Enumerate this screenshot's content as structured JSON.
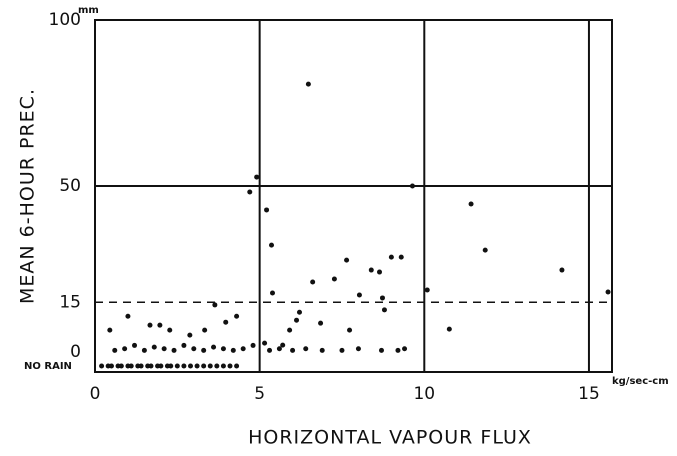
{
  "chart_data": {
    "type": "scatter",
    "x_label": "HORIZONTAL VAPOUR FLUX",
    "y_label": "MEAN 6-HOUR PREC.",
    "x_unit": "kg/sec-cm",
    "y_unit": "mm",
    "no_rain_label": "NO RAIN",
    "xlim": [
      0,
      15.7
    ],
    "ylim": [
      -6,
      100
    ],
    "xticks": [
      0,
      5,
      10,
      15
    ],
    "yticks": [
      0,
      15,
      50,
      100
    ],
    "reference_line": {
      "value": 15,
      "style": "dashed"
    },
    "grid": true,
    "color": "#111",
    "series": [
      {
        "x": [
          6.48,
          4.91,
          4.7,
          5.21,
          5.36,
          5.39,
          9.64,
          11.42,
          11.85,
          14.18,
          15.58,
          10.09,
          10.76,
          7.64,
          7.27,
          6.61,
          8.39,
          8.64,
          9.0,
          9.3,
          8.73,
          8.79,
          8.03,
          6.85,
          6.21,
          6.12,
          5.91,
          3.64,
          3.97,
          4.3,
          0.45,
          1.0,
          1.67,
          1.97,
          2.27,
          2.88,
          3.33,
          7.73,
          5.7,
          5.15,
          0.6,
          0.9,
          1.2,
          1.5,
          1.8,
          2.1,
          2.4,
          2.7,
          3.0,
          3.3,
          3.6,
          3.9,
          4.2,
          4.5,
          4.8,
          5.3,
          5.6,
          6.0,
          6.4,
          6.9,
          7.5,
          8.0,
          8.7,
          9.2,
          9.4
        ],
        "y": [
          80.7,
          52.7,
          48.2,
          42.8,
          32.2,
          17.8,
          50,
          44.6,
          30.7,
          24.7,
          18.1,
          18.7,
          6.9,
          27.7,
          22,
          21.1,
          24.7,
          24.1,
          28.6,
          28.6,
          16.3,
          12.7,
          17.2,
          8.7,
          12,
          9.6,
          6.6,
          14.2,
          9,
          10.8,
          6.6,
          10.8,
          8.1,
          8.1,
          6.6,
          5.1,
          6.6,
          6.6,
          2.1,
          2.7,
          0.5,
          1,
          2,
          0.5,
          1.5,
          1,
          0.5,
          2,
          1,
          0.5,
          1.5,
          1,
          0.5,
          1,
          2,
          0.5,
          1,
          0.5,
          1,
          0.5,
          0.5,
          1,
          0.5,
          0.5,
          1
        ]
      }
    ],
    "no_rain_x": [
      0.2,
      0.4,
      0.5,
      0.7,
      0.8,
      1.0,
      1.1,
      1.3,
      1.4,
      1.6,
      1.7,
      1.9,
      2.0,
      2.2,
      2.3,
      2.5,
      2.7,
      2.9,
      3.1,
      3.3,
      3.5,
      3.7,
      3.9,
      4.1,
      4.3
    ]
  }
}
